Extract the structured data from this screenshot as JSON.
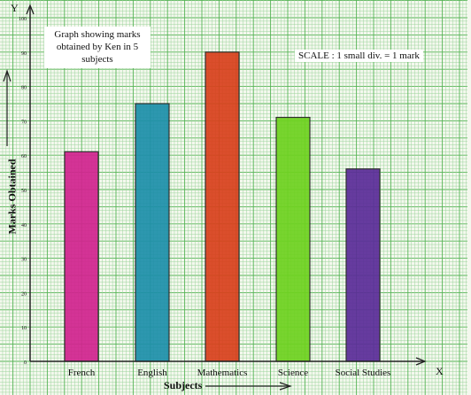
{
  "chart_data": {
    "type": "bar",
    "title": "Graph showing  marks obtained by Ken in 5 subjects",
    "scale_note": "SCALE : 1 small div. = 1 mark",
    "xlabel": "Subjects",
    "ylabel": "Marks Obtained",
    "x_axis_letter": "X",
    "y_axis_letter": "Y",
    "categories": [
      "French",
      "English",
      "Mathematics",
      "Science",
      "Social Studies"
    ],
    "values": [
      61,
      75,
      90,
      71,
      56
    ],
    "colors": [
      "#d2238f",
      "#1d8faa",
      "#d9401c",
      "#6ed21f",
      "#5b2c99"
    ],
    "yticks": [
      10,
      20,
      30,
      40,
      50,
      60,
      70,
      80,
      90,
      100
    ],
    "ylim": [
      0,
      100
    ],
    "grid": true,
    "grid_colors": {
      "minor": "#9dd59d",
      "major": "#56b456"
    }
  }
}
